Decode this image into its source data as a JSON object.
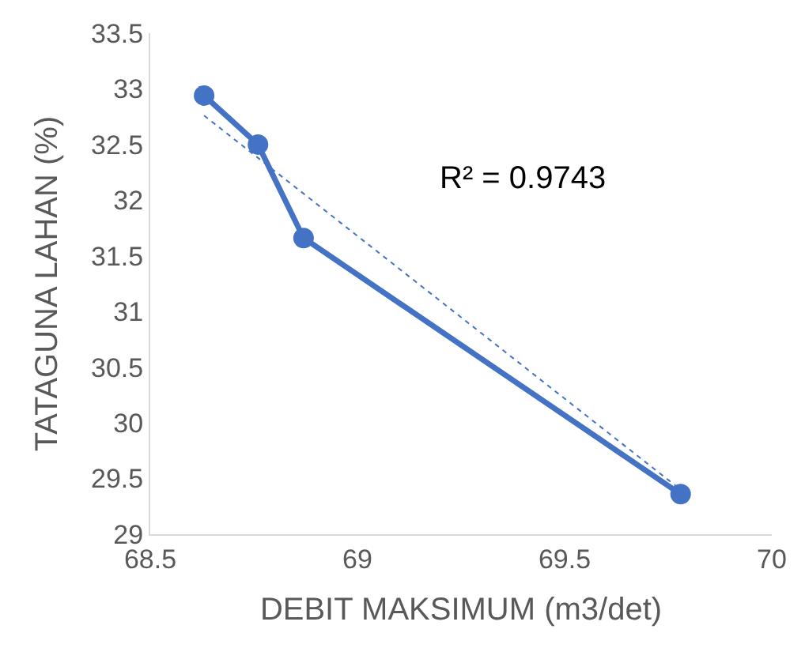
{
  "chart_data": {
    "type": "line",
    "xlabel": "DEBIT MAKSIMUM (m3/det)",
    "ylabel": "TATAGUNA LAHAN (%)",
    "series": [
      {
        "color": "#4472c4",
        "x": [
          68.63,
          68.76,
          68.87,
          69.78
        ],
        "values": [
          32.94,
          32.5,
          31.66,
          29.36
        ],
        "marker": "circle"
      },
      {
        "type": "line",
        "color": "#4472c4",
        "x": [
          68.63,
          69.78
        ],
        "values": [
          32.76,
          29.4
        ],
        "line_style": "dotted",
        "marker": "none"
      }
    ],
    "annotations": [
      "R² = 0.9743"
    ],
    "xlim": [
      68.5,
      70
    ],
    "xticks": [
      68.5,
      69,
      69.5,
      70
    ],
    "ylim": [
      29,
      33.5
    ],
    "yticks": [
      29,
      29.5,
      30,
      30.5,
      31,
      31.5,
      32,
      32.5,
      33,
      33.5
    ],
    "grid": false
  }
}
